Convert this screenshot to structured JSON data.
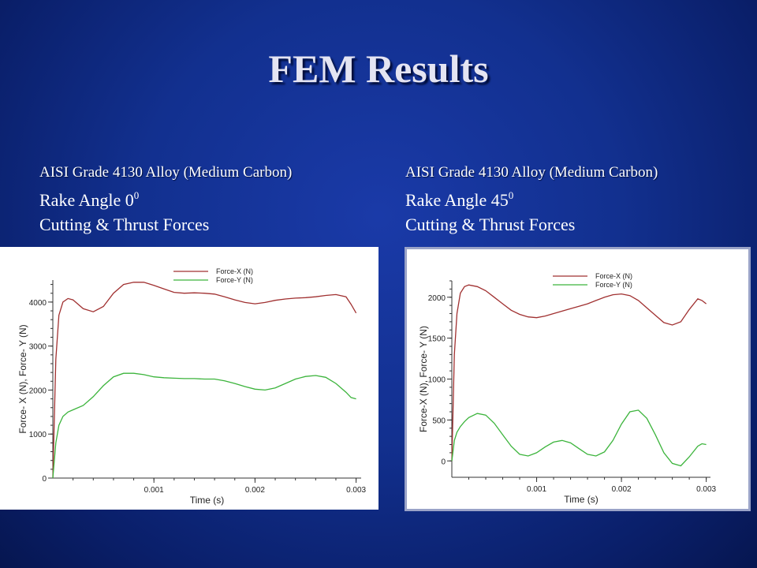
{
  "slide": {
    "title": "FEM Results"
  },
  "captions": [
    {
      "alloy": "AISI Grade 4130 Alloy (Medium Carbon)",
      "rake_label": "Rake Angle  0",
      "rake_sup": "0",
      "forces_label": "Cutting & Thrust Forces"
    },
    {
      "alloy": "AISI Grade 4130 Alloy (Medium Carbon)",
      "rake_label": "Rake Angle  45",
      "rake_sup": "0",
      "forces_label": "Cutting & Thrust Forces"
    }
  ],
  "colors": {
    "force_x": "#a03030",
    "force_y": "#3cb43c",
    "axis": "#333333"
  },
  "chart_data": [
    {
      "type": "line",
      "title": "",
      "xlabel": "Time (s)",
      "ylabel": "Force- X (N), Force- Y (N)",
      "xlim": [
        0,
        0.00305
      ],
      "ylim": [
        0,
        4500
      ],
      "xticks": [
        0.001,
        0.002,
        0.003
      ],
      "xtick_labels": [
        "0.001",
        "0.002",
        "0.003"
      ],
      "yticks": [
        0,
        1000,
        2000,
        3000,
        4000
      ],
      "ytick_labels": [
        "0",
        "1000",
        "2000",
        "3000",
        "4000"
      ],
      "legend_position": "top-right",
      "series": [
        {
          "name": "Force-X (N)",
          "color": "#a03030",
          "x": [
            0,
            3e-05,
            6e-05,
            0.0001,
            0.00015,
            0.0002,
            0.0003,
            0.0004,
            0.0005,
            0.0006,
            0.0007,
            0.0008,
            0.0009,
            0.001,
            0.0011,
            0.0012,
            0.0013,
            0.0014,
            0.0015,
            0.0016,
            0.0017,
            0.0018,
            0.0019,
            0.002,
            0.0021,
            0.0022,
            0.0023,
            0.0024,
            0.0025,
            0.0026,
            0.0027,
            0.0028,
            0.0029,
            0.00295,
            0.003
          ],
          "values": [
            0,
            2700,
            3700,
            4000,
            4080,
            4050,
            3850,
            3780,
            3900,
            4200,
            4400,
            4450,
            4450,
            4380,
            4300,
            4220,
            4200,
            4210,
            4200,
            4180,
            4120,
            4050,
            3990,
            3960,
            3990,
            4040,
            4070,
            4090,
            4100,
            4120,
            4150,
            4170,
            4120,
            3950,
            3750
          ]
        },
        {
          "name": "Force-Y (N)",
          "color": "#3cb43c",
          "x": [
            0,
            3e-05,
            6e-05,
            0.0001,
            0.00015,
            0.0002,
            0.0003,
            0.0004,
            0.0005,
            0.0006,
            0.0007,
            0.0008,
            0.0009,
            0.001,
            0.0011,
            0.0012,
            0.0013,
            0.0014,
            0.0015,
            0.0016,
            0.0017,
            0.0018,
            0.0019,
            0.002,
            0.0021,
            0.0022,
            0.0023,
            0.0024,
            0.0025,
            0.0026,
            0.0027,
            0.0028,
            0.0029,
            0.00295,
            0.003
          ],
          "values": [
            0,
            800,
            1200,
            1400,
            1500,
            1550,
            1650,
            1850,
            2100,
            2300,
            2380,
            2380,
            2350,
            2300,
            2280,
            2270,
            2260,
            2260,
            2250,
            2250,
            2210,
            2150,
            2080,
            2020,
            2000,
            2050,
            2150,
            2250,
            2310,
            2330,
            2290,
            2150,
            1950,
            1830,
            1800
          ]
        }
      ]
    },
    {
      "type": "line",
      "title": "",
      "xlabel": "Time (s)",
      "ylabel": "Force-X (N), Force- Y (N)",
      "xlim": [
        0,
        0.00305
      ],
      "ylim": [
        -200,
        2200
      ],
      "xticks": [
        0.001,
        0.002,
        0.003
      ],
      "xtick_labels": [
        "0.001",
        "0.002",
        "0.003"
      ],
      "yticks": [
        0,
        500,
        1000,
        1500,
        2000
      ],
      "ytick_labels": [
        "0",
        "500",
        "1000",
        "1500",
        "2000"
      ],
      "legend_position": "top-right",
      "series": [
        {
          "name": "Force-X (N)",
          "color": "#a03030",
          "x": [
            0,
            3e-05,
            6e-05,
            0.0001,
            0.00015,
            0.0002,
            0.0003,
            0.0004,
            0.0005,
            0.0006,
            0.0007,
            0.0008,
            0.0009,
            0.001,
            0.0011,
            0.0012,
            0.0013,
            0.0014,
            0.0015,
            0.0016,
            0.0017,
            0.0018,
            0.0019,
            0.002,
            0.0021,
            0.0022,
            0.0023,
            0.0024,
            0.0025,
            0.0026,
            0.0027,
            0.0028,
            0.0029,
            0.00295,
            0.003
          ],
          "values": [
            0,
            1300,
            1800,
            2050,
            2130,
            2150,
            2130,
            2080,
            2000,
            1920,
            1840,
            1790,
            1760,
            1750,
            1770,
            1800,
            1830,
            1860,
            1890,
            1920,
            1960,
            2000,
            2030,
            2040,
            2020,
            1960,
            1870,
            1780,
            1690,
            1660,
            1700,
            1850,
            1980,
            1960,
            1920
          ]
        },
        {
          "name": "Force-Y (N)",
          "color": "#3cb43c",
          "x": [
            0,
            3e-05,
            6e-05,
            0.0001,
            0.00015,
            0.0002,
            0.0003,
            0.0004,
            0.0005,
            0.0006,
            0.0007,
            0.0008,
            0.0009,
            0.001,
            0.0011,
            0.0012,
            0.0013,
            0.0014,
            0.0015,
            0.0016,
            0.0017,
            0.0018,
            0.0019,
            0.002,
            0.0021,
            0.0022,
            0.0023,
            0.0024,
            0.0025,
            0.0026,
            0.0027,
            0.0028,
            0.0029,
            0.00295,
            0.003
          ],
          "values": [
            0,
            250,
            350,
            420,
            480,
            530,
            580,
            560,
            460,
            320,
            180,
            80,
            60,
            100,
            170,
            230,
            250,
            220,
            150,
            80,
            60,
            110,
            250,
            450,
            600,
            620,
            520,
            320,
            100,
            -30,
            -60,
            50,
            180,
            210,
            200
          ]
        }
      ]
    }
  ]
}
